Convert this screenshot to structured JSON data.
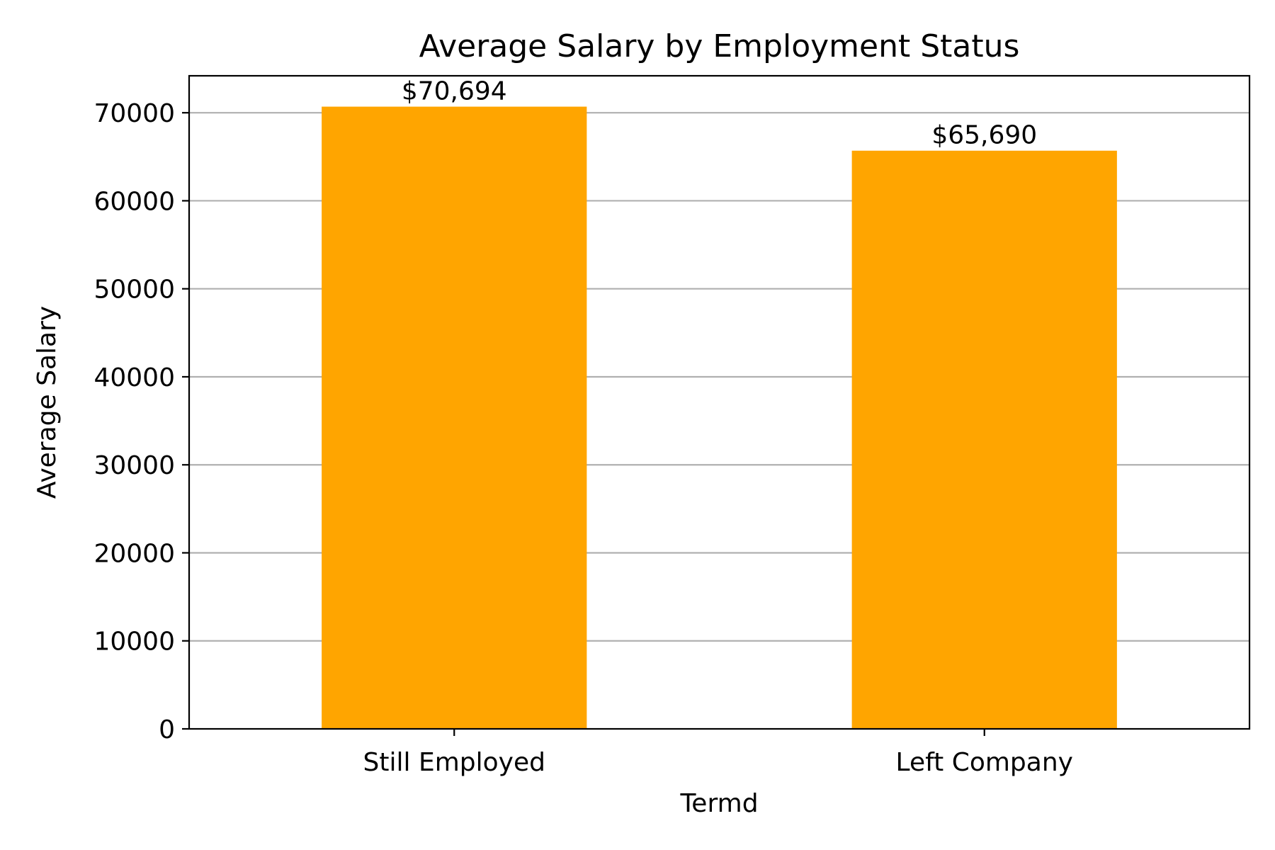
{
  "chart_data": {
    "type": "bar",
    "title": "Average Salary by Employment Status",
    "xlabel": "Termd",
    "ylabel": "Average Salary",
    "categories": [
      "Still Employed",
      "Left Company"
    ],
    "values": [
      70694,
      65690
    ],
    "data_labels": [
      "$70,694",
      "$65,690"
    ],
    "ylim": [
      0,
      74200
    ],
    "yticks": [
      0,
      10000,
      20000,
      30000,
      40000,
      50000,
      60000,
      70000
    ],
    "ytick_labels": [
      "0",
      "10000",
      "20000",
      "30000",
      "40000",
      "50000",
      "60000",
      "70000"
    ],
    "grid": "y",
    "legend": "none",
    "bar_color": "#FFA500"
  }
}
